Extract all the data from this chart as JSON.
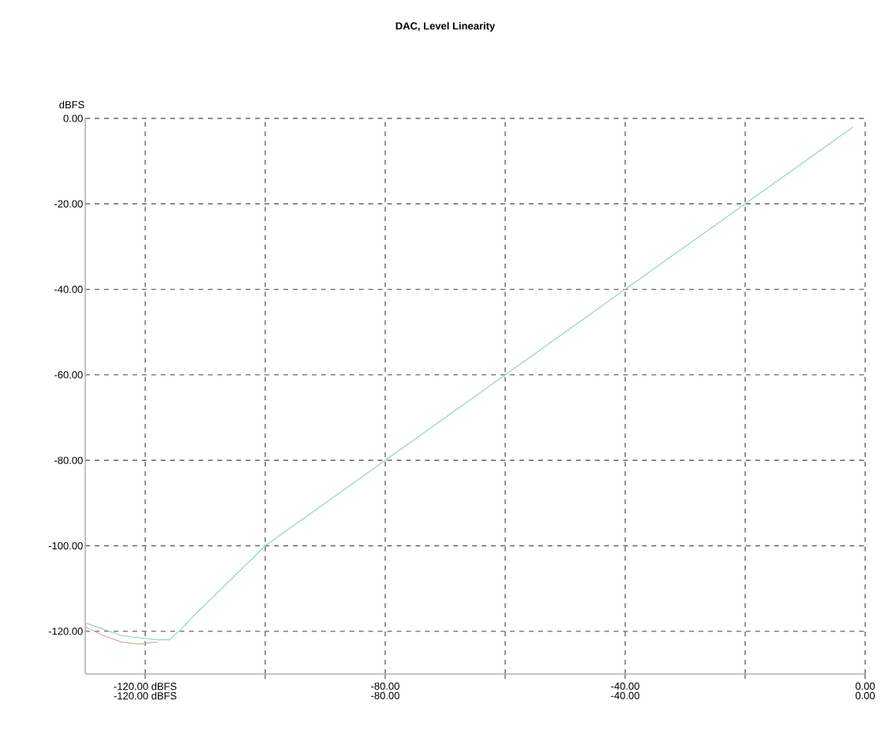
{
  "chart_data": {
    "type": "line",
    "title": "DAC, Level Linearity",
    "ylabel": "dBFS",
    "xlim": [
      -130,
      0
    ],
    "ylim": [
      -130,
      0
    ],
    "xticks": [
      {
        "value": -120,
        "label": "-120.00 dBFS"
      },
      {
        "value": -100,
        "label": null
      },
      {
        "value": -80,
        "label": "-80.00"
      },
      {
        "value": -60,
        "label": null
      },
      {
        "value": -40,
        "label": "-40.00"
      },
      {
        "value": -20,
        "label": null
      },
      {
        "value": 0,
        "label": "0.00"
      }
    ],
    "x2lim": [
      -130,
      0
    ],
    "x2ticks": [
      {
        "value": -120,
        "label": "-120.00 dBFS"
      },
      {
        "value": -80,
        "label": "-80.00"
      },
      {
        "value": -40,
        "label": "-40.00"
      },
      {
        "value": 0,
        "label": "0.00"
      }
    ],
    "yticks": [
      {
        "value": 0,
        "label": "0.00"
      },
      {
        "value": -20,
        "label": "-20.00"
      },
      {
        "value": -40,
        "label": "-40.00"
      },
      {
        "value": -60,
        "label": "-60.00"
      },
      {
        "value": -80,
        "label": "-80.00"
      },
      {
        "value": -100,
        "label": "-100.00"
      },
      {
        "value": -120,
        "label": "-120.00"
      }
    ],
    "grid": true,
    "line_style": "solid",
    "series": [
      {
        "color": "#e6a4a4",
        "x": [
          -130,
          -127,
          -124,
          -121,
          -118
        ],
        "values": [
          -119,
          -121,
          -122.5,
          -123,
          -122.5
        ]
      },
      {
        "color": "#93d3ca",
        "x": [
          -130,
          -127,
          -124,
          -121,
          -118,
          -116,
          -114,
          -112,
          -100,
          -80,
          -60,
          -40,
          -20,
          -2
        ],
        "values": [
          -118,
          -119.5,
          -121,
          -121.5,
          -122,
          -122,
          -119.5,
          -116.5,
          -100,
          -80,
          -60,
          -40,
          -20,
          -2
        ]
      }
    ]
  }
}
